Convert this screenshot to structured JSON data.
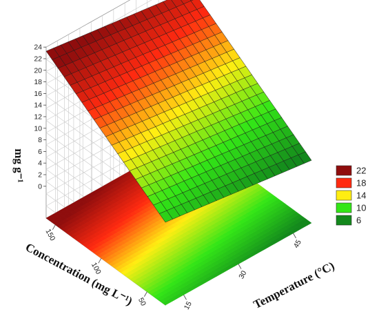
{
  "chart_data": {
    "type": "surface",
    "zlabel": "mg g⁻¹",
    "xlabel": "Temperature (°C)",
    "ylabel": "Concentration (mg L⁻¹)",
    "x_ticks": [
      15,
      30,
      45
    ],
    "y_ticks": [
      50,
      100,
      150
    ],
    "z_ticks": [
      0,
      2,
      4,
      6,
      8,
      10,
      12,
      14,
      16,
      18,
      20,
      22,
      24
    ],
    "xlim": [
      10,
      50
    ],
    "ylim": [
      30,
      160
    ],
    "zlim": [
      0,
      24
    ],
    "surface": {
      "x": [
        10,
        50
      ],
      "y": [
        30,
        160
      ],
      "z": [
        [
          8.8,
          5.3
        ],
        [
          23.3,
          19.8
        ]
      ]
    },
    "grid": true,
    "legend": {
      "placement": "right",
      "entries": [
        {
          "label": "22",
          "color": "#8f0d0d"
        },
        {
          "label": "18",
          "color": "#ff2a10"
        },
        {
          "label": "14",
          "color": "#ffee12"
        },
        {
          "label": "10",
          "color": "#33e617"
        },
        {
          "label": "6",
          "color": "#13881c"
        }
      ]
    }
  }
}
